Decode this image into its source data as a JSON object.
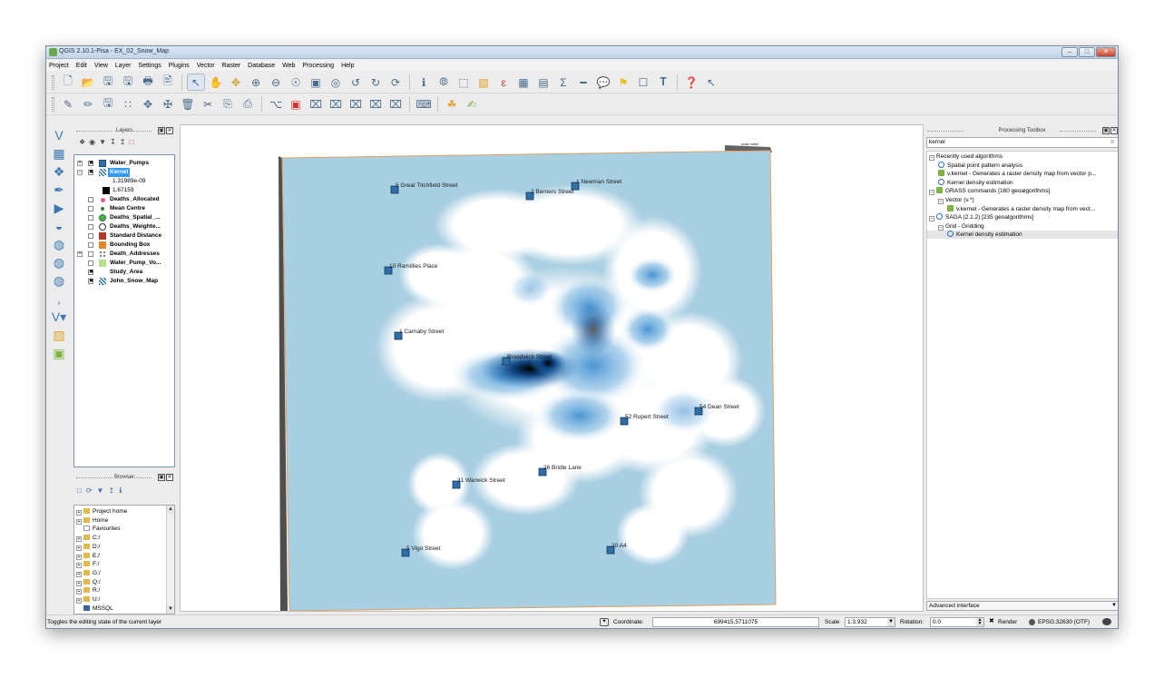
{
  "window": {
    "title": "QGIS 2.10.1-Pisa - EX_02_Snow_Map",
    "controls": [
      "–",
      "□",
      "✕"
    ]
  },
  "menu": [
    "Project",
    "Edit",
    "View",
    "Layer",
    "Settings",
    "Plugins",
    "Vector",
    "Raster",
    "Database",
    "Web",
    "Processing",
    "Help"
  ],
  "toolbar1_icons": [
    "new-project-icon",
    "open-project-icon",
    "save-project-icon",
    "save-as-icon",
    "new-print-composer-icon",
    "composer-manager-icon",
    "select-pan-icon",
    "pan-icon",
    "pan-to-selection-icon",
    "zoom-in-icon",
    "zoom-out-icon",
    "zoom-full-icon",
    "zoom-to-selection-icon",
    "zoom-to-layer-icon",
    "zoom-last-icon",
    "zoom-next-icon",
    "refresh-icon",
    "identify-icon",
    "measure-icon",
    "select-features-icon",
    "deselect-icon",
    "expression-select-icon",
    "attribute-table-icon",
    "field-calculator-icon",
    "statistics-icon",
    "measure-line-icon",
    "map-tips-icon",
    "new-bookmark-icon",
    "show-bookmarks-icon",
    "text-annotation-icon",
    "help-icon",
    "whats-this-icon"
  ],
  "toolbar2_icons": [
    "current-edits-icon",
    "toggle-editing-icon",
    "save-edits-icon",
    "add-feature-icon",
    "move-feature-icon",
    "node-tool-icon",
    "delete-selected-icon",
    "cut-features-icon",
    "copy-features-icon",
    "paste-features-icon",
    "label-icon",
    "pin-labels-icon",
    "show-hide-labels-icon",
    "move-label-icon",
    "rotate-label-icon",
    "change-label-icon",
    "label-props-icon",
    "csw-icon",
    "python-console-icon",
    "plugin-icon"
  ],
  "left_toolbar_icons": [
    "add-vector-layer-icon",
    "add-raster-layer-icon",
    "add-postgis-layer-icon",
    "add-spatialite-layer-icon",
    "add-mssql-layer-icon",
    "add-oracle-layer-icon",
    "add-wms-layer-icon",
    "add-wcs-layer-icon",
    "add-wfs-layer-icon",
    "add-delimited-text-icon",
    "new-shapefile-icon",
    "processing-icon",
    "plugin-manager-icon"
  ],
  "layers_panel": {
    "title": "Layers",
    "toolbar_icons": [
      "add-group-icon",
      "manage-visibility-icon",
      "filter-legend-icon",
      "expand-all-icon",
      "collapse-all-icon",
      "remove-layer-icon"
    ],
    "items": [
      {
        "name": "Water_Pumps",
        "checked": true,
        "expanded": false,
        "symbol": "square-blue",
        "selected": false
      },
      {
        "name": "Kernel",
        "checked": true,
        "expanded": true,
        "symbol": "raster-grid",
        "selected": true
      },
      {
        "name": "1.31989e-09",
        "legend": true,
        "symbol": "none"
      },
      {
        "name": "1.67159",
        "legend": true,
        "symbol": "square-black"
      },
      {
        "name": "Deaths_Allocated",
        "checked": false,
        "symbol": "dot-pink"
      },
      {
        "name": "Mean Centre",
        "checked": false,
        "symbol": "dot-green-small"
      },
      {
        "name": "Deaths_Spatial_...",
        "checked": false,
        "symbol": "dot-green"
      },
      {
        "name": "Deaths_Weighte...",
        "checked": false,
        "symbol": "ring"
      },
      {
        "name": "Standard Distance",
        "checked": false,
        "symbol": "square-red"
      },
      {
        "name": "Bounding Box",
        "checked": false,
        "symbol": "square-orange"
      },
      {
        "name": "Death_Addresses",
        "checked": false,
        "expanded": false,
        "symbol": "dots"
      },
      {
        "name": "Water_Pump_Vo...",
        "checked": false,
        "symbol": "square-lightgreen"
      },
      {
        "name": "Study_Area",
        "checked": true,
        "symbol": "none"
      },
      {
        "name": "John_Snow_Map",
        "checked": true,
        "symbol": "raster-grid"
      }
    ]
  },
  "browser_panel": {
    "title": "Browser",
    "toolbar_icons": [
      "add-selected-icon",
      "refresh-icon",
      "filter-icon",
      "collapse-icon",
      "properties-icon"
    ],
    "items": [
      "Project home",
      "Home",
      "Favourites",
      "C:/",
      "D:/",
      "E:/",
      "F:/",
      "G:/",
      "Q:/",
      "R:/",
      "U:/",
      "MSSQL"
    ]
  },
  "map": {
    "colors": {
      "water": "#a9cfe2",
      "kernel_low": "#ffffff",
      "kernel_mid": "#5aa3d8",
      "kernel_high": "#08306b",
      "pump": "#2f6fa7",
      "frame": "#e0a060"
    },
    "corner_note": "scale label",
    "pumps": [
      {
        "label": "5 Great Titchfield Street"
      },
      {
        "label": "2 Berners Street"
      },
      {
        "label": "1 Newman Street"
      },
      {
        "label": "10 Ramillies Place"
      },
      {
        "label": "1 Carnaby Street"
      },
      {
        "label": "Broadwick Street"
      },
      {
        "label": "52 Rupert Street"
      },
      {
        "label": "54 Dean Street"
      },
      {
        "label": "26 Bridle Lane"
      },
      {
        "label": "31 Warwick Street"
      },
      {
        "label": "5 Vigo Street"
      },
      {
        "label": "20 A4"
      }
    ]
  },
  "toolbox": {
    "title": "Processing Toolbox",
    "search_value": "kernel",
    "tree": [
      {
        "text": "Recently used algorithms",
        "level": 0,
        "type": "group"
      },
      {
        "text": "Spatial point pattern analysis",
        "level": 1,
        "type": "alg"
      },
      {
        "text": "v.kernel - Generates a raster density map from vector p...",
        "level": 1,
        "type": "alg-grass"
      },
      {
        "text": "Kernel density estimation",
        "level": 1,
        "type": "alg"
      },
      {
        "text": "GRASS commands [160 geoalgorithms]",
        "level": 0,
        "type": "group-grass"
      },
      {
        "text": "Vector (v.*)",
        "level": 1,
        "type": "group"
      },
      {
        "text": "v.kernel - Generates a raster density map from vect...",
        "level": 2,
        "type": "alg-grass"
      },
      {
        "text": "SAGA (2.1.2) [235 geoalgorithms]",
        "level": 0,
        "type": "group-saga"
      },
      {
        "text": "Grid - Gridding",
        "level": 1,
        "type": "group"
      },
      {
        "text": "Kernel density estimation",
        "level": 2,
        "type": "alg",
        "selected": true
      }
    ],
    "mode": "Advanced interface"
  },
  "statusbar": {
    "message": "Toggles the editing state of the current layer",
    "coordinate_label": "Coordinate:",
    "coordinate_value": "699415,5711075",
    "scale_label": "Scale",
    "scale_value": "1:3,932",
    "rotation_label": "Rotation:",
    "rotation_value": "0.0",
    "render_label": "Render",
    "crs_label": "EPSG:32630 (OTF)"
  }
}
